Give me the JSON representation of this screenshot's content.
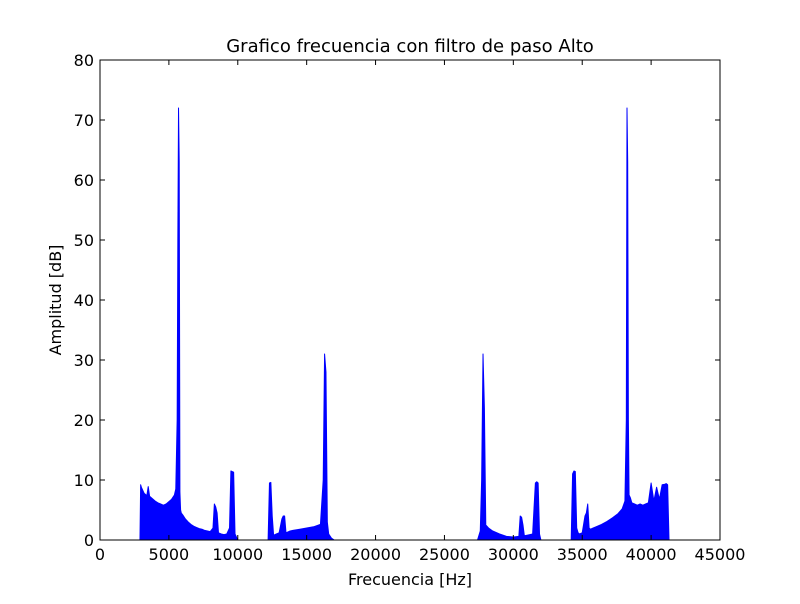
{
  "chart_data": {
    "type": "line",
    "title": "Grafico frecuencia con filtro de paso Alto",
    "xlabel": "Frecuencia [Hz]",
    "ylabel": "Amplitud [dB]",
    "xlim": [
      0,
      45000
    ],
    "ylim": [
      0,
      80
    ],
    "xticks": [
      0,
      5000,
      10000,
      15000,
      20000,
      25000,
      30000,
      35000,
      40000,
      45000
    ],
    "xtick_labels": [
      "0",
      "5000",
      "10000",
      "15000",
      "20000",
      "25000",
      "30000",
      "35000",
      "40000",
      "45000"
    ],
    "yticks": [
      0,
      10,
      20,
      30,
      40,
      50,
      60,
      70,
      80
    ],
    "ytick_labels": [
      "0",
      "10",
      "20",
      "30",
      "40",
      "50",
      "60",
      "70",
      "80"
    ],
    "grid": false,
    "series": [
      {
        "color": "#0000ff",
        "x": [
          0,
          2900,
          2950,
          3000,
          3200,
          3400,
          3500,
          3600,
          3800,
          4000,
          4200,
          4400,
          4600,
          4800,
          5000,
          5200,
          5400,
          5500,
          5600,
          5650,
          5700,
          5750,
          5800,
          5850,
          5900,
          6000,
          6200,
          6400,
          6600,
          6800,
          7000,
          7200,
          7400,
          7600,
          7800,
          8000,
          8200,
          8300,
          8400,
          8500,
          8600,
          8800,
          9000,
          9200,
          9400,
          9500,
          9600,
          9700,
          9800,
          10000,
          12200,
          12300,
          12400,
          12500,
          12600,
          12800,
          13000,
          13200,
          13300,
          13400,
          13500,
          13600,
          13800,
          14000,
          14500,
          15000,
          15500,
          16000,
          16200,
          16300,
          16400,
          16500,
          16600,
          16800,
          17000,
          27400,
          27600,
          27700,
          27800,
          27900,
          28000,
          28200,
          28500,
          29000,
          29500,
          30000,
          30400,
          30500,
          30600,
          30700,
          30800,
          31000,
          31400,
          31600,
          31700,
          31800,
          31900,
          32000,
          34200,
          34300,
          34400,
          34500,
          34600,
          34700,
          34800,
          35000,
          35200,
          35300,
          35400,
          35500,
          35600,
          35800,
          36000,
          36400,
          36800,
          37200,
          37600,
          37900,
          38100,
          38200,
          38250,
          38300,
          38350,
          38400,
          38500,
          38600,
          38800,
          39000,
          39200,
          39400,
          39600,
          39800,
          40000,
          40200,
          40400,
          40600,
          40800,
          41000,
          41100,
          41200,
          41300,
          44000
        ],
        "y": [
          0,
          0,
          9.2,
          8.8,
          7.8,
          7.4,
          8.9,
          7.3,
          6.9,
          6.5,
          6.2,
          6.0,
          5.8,
          6.0,
          6.4,
          6.8,
          7.5,
          8.5,
          20,
          50,
          72,
          63,
          8,
          5.0,
          4.5,
          4.2,
          3.5,
          3.0,
          2.6,
          2.3,
          2.1,
          1.9,
          1.8,
          1.6,
          1.5,
          1.4,
          2.0,
          6.0,
          5.5,
          4.5,
          1.2,
          1.0,
          0.9,
          1.0,
          2.0,
          11.5,
          11.4,
          11.3,
          1.0,
          0,
          0,
          9.5,
          9.6,
          4.0,
          0.8,
          1.0,
          1.2,
          3.5,
          4.0,
          4.0,
          1.2,
          1.3,
          1.5,
          1.6,
          1.8,
          2.0,
          2.2,
          2.6,
          10,
          31,
          28,
          3.0,
          1.0,
          0.3,
          0,
          0,
          1.5,
          10,
          31,
          22,
          2.5,
          2.0,
          1.5,
          1.0,
          0.6,
          0.5,
          0.6,
          4.0,
          3.8,
          2.5,
          0.7,
          0.8,
          1.0,
          9.5,
          9.7,
          9.5,
          1.0,
          0,
          0,
          11.0,
          11.5,
          11.4,
          2.0,
          1.2,
          1.0,
          1.2,
          4.0,
          4.5,
          6.0,
          2.0,
          1.8,
          2.0,
          2.2,
          2.6,
          3.1,
          3.7,
          4.4,
          5.2,
          6.5,
          20,
          72,
          63,
          20,
          7.5,
          7.0,
          6.2,
          6.0,
          5.8,
          6.0,
          5.8,
          6.0,
          6.2,
          9.5,
          6.5,
          8.8,
          6.8,
          9.2,
          9.3,
          9.4,
          9.2,
          0,
          0
        ]
      }
    ]
  }
}
